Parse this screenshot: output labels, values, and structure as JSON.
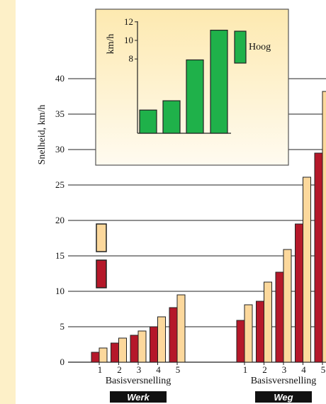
{
  "colors": {
    "sidebar": "#fdf0c8",
    "low": "#b5182a",
    "high": "#fcd89c",
    "inset_bar": "#1fb14a",
    "inset_bg_top": "#fde9b0",
    "inset_bg_bottom": "#fffbf0",
    "label_bg": "#111111"
  },
  "chart_data": [
    {
      "type": "bar",
      "ylabel": "Snelheid, km/h",
      "ylim": [
        0,
        40
      ],
      "yticks": [
        0,
        5,
        10,
        15,
        20,
        25,
        30,
        35,
        40
      ],
      "grid": true,
      "groups": [
        {
          "name": "Werk",
          "xlabel": "Basisversnelling",
          "categories": [
            "1",
            "2",
            "3",
            "4",
            "5"
          ],
          "series": [
            {
              "values": [
                1.4,
                2.7,
                3.8,
                5.0,
                7.7
              ]
            },
            {
              "values": [
                2.0,
                3.4,
                4.4,
                6.4,
                9.5
              ]
            }
          ]
        },
        {
          "name": "Weg",
          "xlabel": "Basisversnelling",
          "categories": [
            "1",
            "2",
            "3",
            "4",
            "5"
          ],
          "series": [
            {
              "values": [
                5.9,
                8.6,
                12.7,
                19.5,
                29.5
              ]
            },
            {
              "values": [
                8.1,
                11.3,
                15.9,
                26.1,
                38.2
              ]
            }
          ]
        }
      ]
    },
    {
      "type": "bar",
      "ylabel": "km/h",
      "yticks": [
        8,
        10,
        12
      ],
      "ylim": [
        0,
        12.5
      ],
      "series": [
        {
          "name": "Hoog",
          "values": [
            2.5,
            3.5,
            7.9,
            11.1
          ]
        }
      ]
    }
  ]
}
